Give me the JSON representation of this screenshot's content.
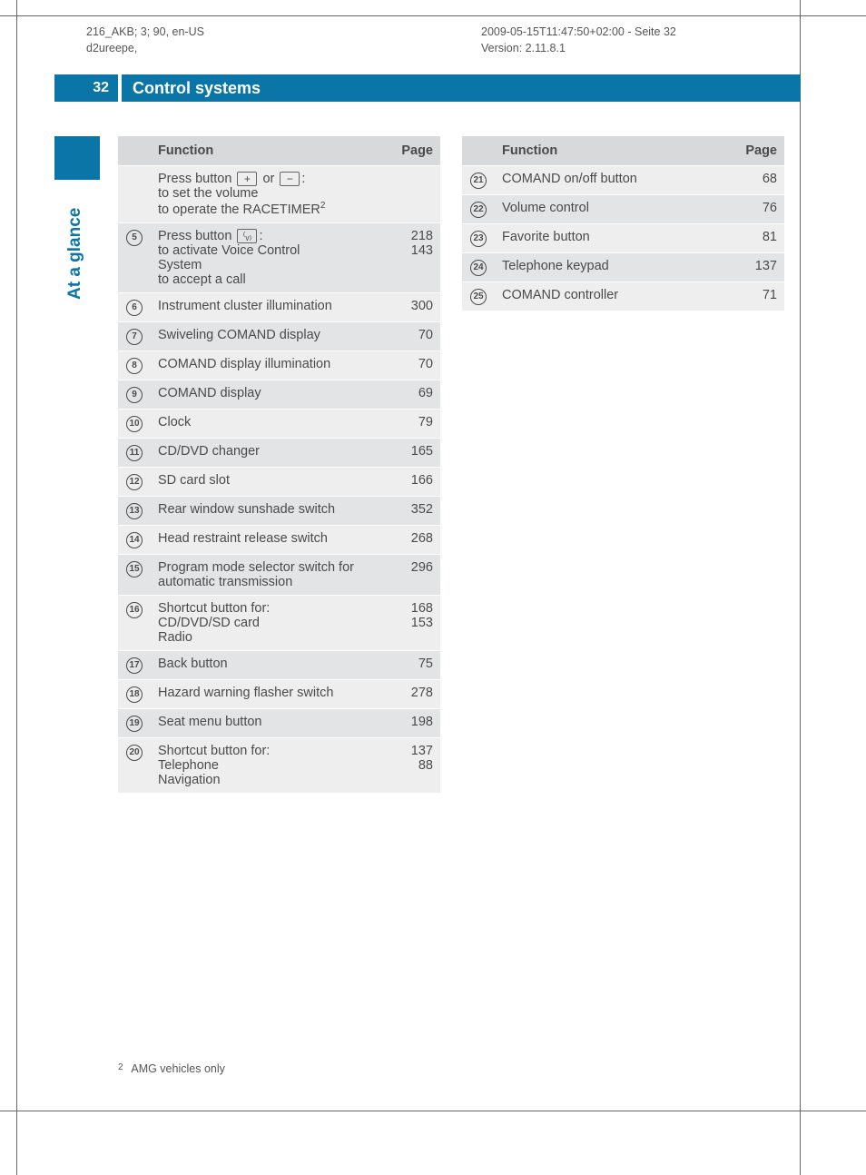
{
  "meta": {
    "left_line1": "216_AKB; 3; 90, en-US",
    "left_line2": "d2ureepe,",
    "right_line1": "2009-05-15T11:47:50+02:00 - Seite 32",
    "right_line2": "Version: 2.11.8.1"
  },
  "header": {
    "page_number": "32",
    "chapter": "Control systems"
  },
  "side_label": "At a glance",
  "table_header": {
    "function": "Function",
    "page": "Page"
  },
  "left_rows": [
    {
      "num": "",
      "lines": [
        "Press button [+] or [−]:",
        "to set the volume",
        "to operate the RACETIMER^2"
      ],
      "pages": [],
      "special": "plusminus"
    },
    {
      "num": "5",
      "lines": [
        "Press button [voice]:",
        "to activate Voice Control System",
        "to accept a call"
      ],
      "pages": [
        "218",
        "143"
      ],
      "special": "voice"
    },
    {
      "num": "6",
      "lines": [
        "Instrument cluster illumination"
      ],
      "pages": [
        "300"
      ]
    },
    {
      "num": "7",
      "lines": [
        "Swiveling COMAND display"
      ],
      "pages": [
        "70"
      ]
    },
    {
      "num": "8",
      "lines": [
        "COMAND display illumination"
      ],
      "pages": [
        "70"
      ]
    },
    {
      "num": "9",
      "lines": [
        "COMAND display"
      ],
      "pages": [
        "69"
      ]
    },
    {
      "num": "10",
      "lines": [
        "Clock"
      ],
      "pages": [
        "79"
      ]
    },
    {
      "num": "11",
      "lines": [
        "CD/DVD changer"
      ],
      "pages": [
        "165"
      ]
    },
    {
      "num": "12",
      "lines": [
        "SD card slot"
      ],
      "pages": [
        "166"
      ]
    },
    {
      "num": "13",
      "lines": [
        "Rear window sunshade switch"
      ],
      "pages": [
        "352"
      ]
    },
    {
      "num": "14",
      "lines": [
        "Head restraint release switch"
      ],
      "pages": [
        "268"
      ]
    },
    {
      "num": "15",
      "lines": [
        "Program mode selector switch for automatic transmission"
      ],
      "pages": [
        "296"
      ]
    },
    {
      "num": "16",
      "lines": [
        "Shortcut button for:",
        "CD/DVD/SD card",
        "Radio"
      ],
      "pages": [
        "168",
        "153"
      ]
    },
    {
      "num": "17",
      "lines": [
        "Back button"
      ],
      "pages": [
        "75"
      ]
    },
    {
      "num": "18",
      "lines": [
        "Hazard warning flasher switch"
      ],
      "pages": [
        "278"
      ]
    },
    {
      "num": "19",
      "lines": [
        "Seat menu button"
      ],
      "pages": [
        "198"
      ]
    },
    {
      "num": "20",
      "lines": [
        "Shortcut button for:",
        "Telephone",
        "Navigation"
      ],
      "pages": [
        "137",
        "88"
      ]
    }
  ],
  "right_rows": [
    {
      "num": "21",
      "lines": [
        "COMAND on/off button"
      ],
      "pages": [
        "68"
      ]
    },
    {
      "num": "22",
      "lines": [
        "Volume control"
      ],
      "pages": [
        "76"
      ]
    },
    {
      "num": "23",
      "lines": [
        "Favorite button"
      ],
      "pages": [
        "81"
      ]
    },
    {
      "num": "24",
      "lines": [
        "Telephone keypad"
      ],
      "pages": [
        "137"
      ]
    },
    {
      "num": "25",
      "lines": [
        "COMAND controller"
      ],
      "pages": [
        "71"
      ]
    }
  ],
  "footnote": {
    "num": "2",
    "text": "AMG vehicles only"
  },
  "colors": {
    "brand": "#0b75a8",
    "row_odd": "#eeeeef",
    "row_even": "#e3e4e5",
    "header_bg": "#d8d9da",
    "text": "#4a4a4a"
  }
}
